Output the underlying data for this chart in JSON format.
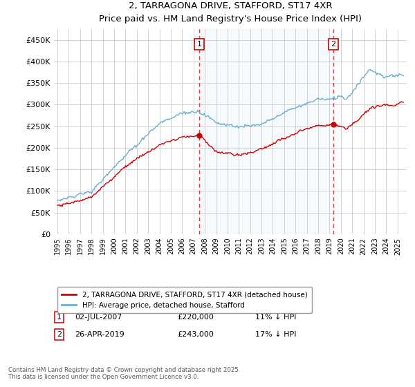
{
  "title": "2, TARRAGONA DRIVE, STAFFORD, ST17 4XR",
  "subtitle": "Price paid vs. HM Land Registry's House Price Index (HPI)",
  "ylim": [
    0,
    475000
  ],
  "yticks": [
    0,
    50000,
    100000,
    150000,
    200000,
    250000,
    300000,
    350000,
    400000,
    450000
  ],
  "ytick_labels": [
    "£0",
    "£50K",
    "£100K",
    "£150K",
    "£200K",
    "£250K",
    "£300K",
    "£350K",
    "£400K",
    "£450K"
  ],
  "xlim_start": 1994.7,
  "xlim_end": 2025.8,
  "hpi_color": "#6baed6",
  "hpi_fill_color": "#d6e8f5",
  "price_color": "#cc0000",
  "vline_color": "#d04040",
  "vline_style": "--",
  "marker1_year": 2007.5,
  "marker1_price": 220000,
  "marker1_label": "1",
  "marker2_year": 2019.33,
  "marker2_price": 243000,
  "marker2_label": "2",
  "legend_line1": "2, TARRAGONA DRIVE, STAFFORD, ST17 4XR (detached house)",
  "legend_line2": "HPI: Average price, detached house, Stafford",
  "note1_label": "1",
  "note1_date": "02-JUL-2007",
  "note1_price": "£220,000",
  "note1_hpi": "11% ↓ HPI",
  "note2_label": "2",
  "note2_date": "26-APR-2019",
  "note2_price": "£243,000",
  "note2_hpi": "17% ↓ HPI",
  "footnote": "Contains HM Land Registry data © Crown copyright and database right 2025.\nThis data is licensed under the Open Government Licence v3.0.",
  "background_color": "#ffffff",
  "grid_color": "#cccccc"
}
